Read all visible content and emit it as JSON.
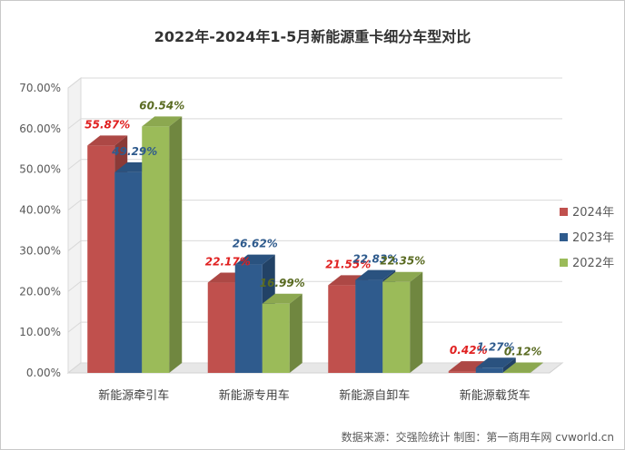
{
  "chart_data": {
    "type": "bar",
    "title": "2022年-2024年1-5月新能源重卡细分车型对比",
    "categories": [
      "新能源牵引车",
      "新能源专用车",
      "新能源自卸车",
      "新能源载货车"
    ],
    "series": [
      {
        "name": "2024年",
        "color": "#c0504d",
        "label_color": "#e02020",
        "values": [
          55.87,
          22.17,
          21.55,
          0.42
        ]
      },
      {
        "name": "2023年",
        "color": "#2f5b8d",
        "label_color": "#2f5b8d",
        "values": [
          49.29,
          26.62,
          22.83,
          1.27
        ]
      },
      {
        "name": "2022年",
        "color": "#9bbb59",
        "label_color": "#5a6b22",
        "values": [
          60.54,
          16.99,
          22.35,
          0.12
        ]
      }
    ],
    "data_labels": [
      [
        "55.87%",
        "49.29%",
        "60.54%"
      ],
      [
        "22.17%",
        "26.62%",
        "16.99%"
      ],
      [
        "21.55%",
        "22.83%",
        "22.35%"
      ],
      [
        "0.42%",
        "1.27%",
        "0.12%"
      ]
    ],
    "yticks": [
      "0.00%",
      "10.00%",
      "20.00%",
      "30.00%",
      "40.00%",
      "50.00%",
      "60.00%",
      "70.00%"
    ],
    "ylim": [
      0,
      70
    ],
    "grid": true,
    "legend_position": "right",
    "style": "3d-bar",
    "source": "数据来源：交强险统计   制图：第一商用车网 cvworld.cn"
  }
}
